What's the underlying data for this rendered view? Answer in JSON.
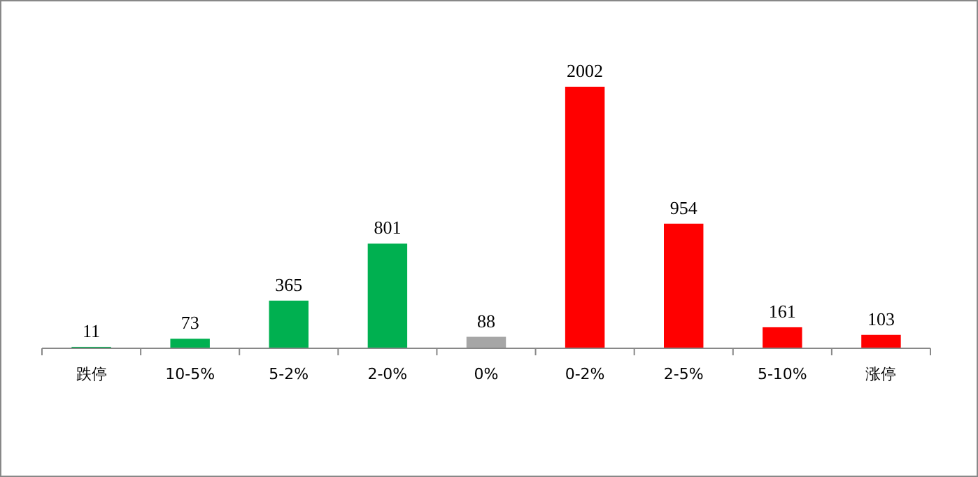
{
  "chart_data": {
    "type": "bar",
    "categories": [
      "跌停",
      "10-5%",
      "5-2%",
      "2-0%",
      "0%",
      "0-2%",
      "2-5%",
      "5-10%",
      "涨停"
    ],
    "values": [
      11,
      73,
      365,
      801,
      88,
      2002,
      954,
      161,
      103
    ],
    "colors": [
      "#00b050",
      "#00b050",
      "#00b050",
      "#00b050",
      "#a6a6a6",
      "#ff0000",
      "#ff0000",
      "#ff0000",
      "#ff0000"
    ],
    "data_labels": true
  }
}
